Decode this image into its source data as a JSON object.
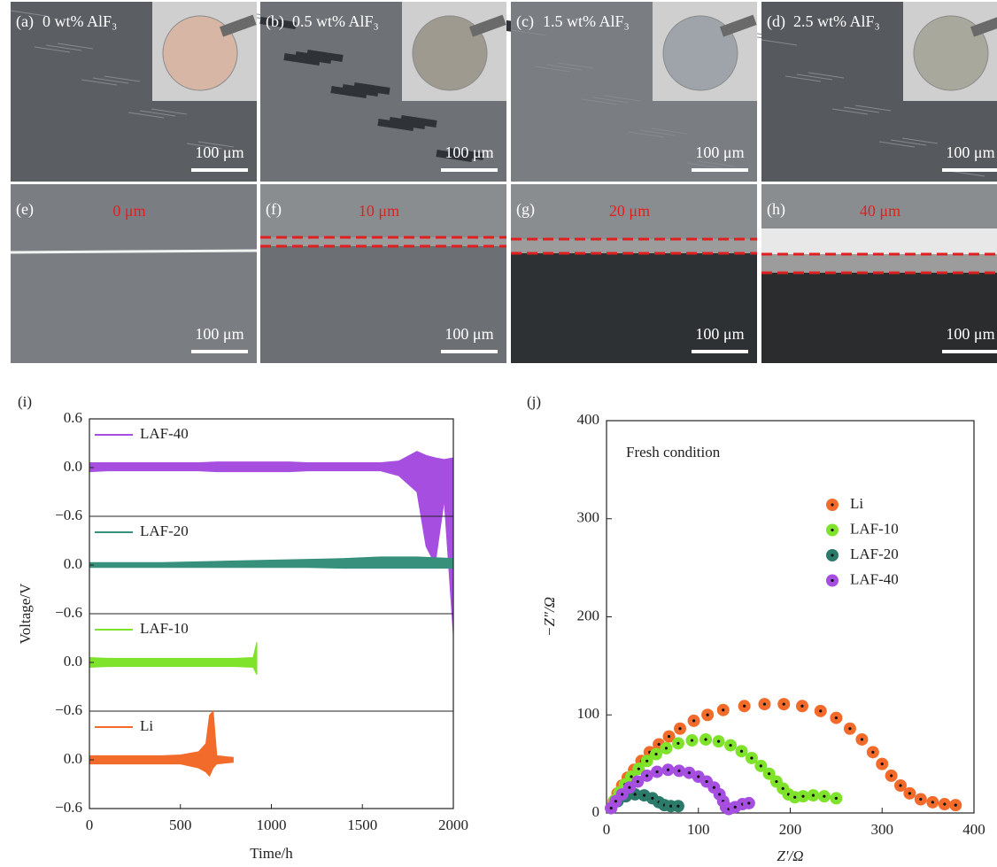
{
  "panels": [
    {
      "label": "(a)",
      "text": "0 wt% AlF₃",
      "scale": "100 μm"
    },
    {
      "label": "(b)",
      "text": "0.5 wt% AlF₃",
      "scale": "100 μm"
    },
    {
      "label": "(c)",
      "text": "1.5 wt% AlF₃",
      "scale": "100 μm"
    },
    {
      "label": "(d)",
      "text": "2.5 wt% AlF₃",
      "scale": "100 μm"
    },
    {
      "label": "(e)",
      "text": "0 μm",
      "scale": "100 μm"
    },
    {
      "label": "(f)",
      "text": "10 μm",
      "scale": "100 μm"
    },
    {
      "label": "(g)",
      "text": "20 μm",
      "scale": "100 μm"
    },
    {
      "label": "(h)",
      "text": "40 μm",
      "scale": "100 μm"
    }
  ],
  "chart_data": [
    {
      "type": "area",
      "label": "(i)",
      "xlabel": "Time/h",
      "ylabel": "Voltage/V",
      "xlim": [
        0,
        2000
      ],
      "xticks": [
        0,
        500,
        1000,
        1500,
        2000
      ],
      "series": [
        {
          "name": "LAF-40",
          "color": "#a64ee0",
          "ylim": [
            -0.6,
            0.6
          ],
          "yticks": [
            {
              "value": -0.6,
              "label": "−0.6"
            },
            {
              "value": 0,
              "label": "0.0"
            },
            0.6
          ],
          "x": [
            0,
            100,
            200,
            300,
            400,
            500,
            600,
            700,
            800,
            900,
            1000,
            1100,
            1200,
            1300,
            1400,
            1500,
            1600,
            1700,
            1800,
            1850,
            1900,
            1950,
            2000
          ],
          "upper": [
            0.06,
            0.06,
            0.06,
            0.06,
            0.06,
            0.06,
            0.06,
            0.07,
            0.07,
            0.07,
            0.07,
            0.07,
            0.06,
            0.06,
            0.06,
            0.06,
            0.06,
            0.08,
            0.2,
            0.15,
            0.12,
            0.1,
            0.12
          ],
          "lower": [
            -0.05,
            -0.04,
            -0.04,
            -0.04,
            -0.04,
            -0.04,
            -0.04,
            -0.05,
            -0.05,
            -0.05,
            -0.05,
            -0.05,
            -0.04,
            -0.04,
            -0.04,
            -0.04,
            -0.04,
            -0.1,
            -0.3,
            -0.97,
            -1.19,
            -0.4,
            -2.06
          ]
        },
        {
          "name": "LAF-20",
          "color": "#36907c",
          "ylim": [
            -0.6,
            0.6
          ],
          "yticks": [
            {
              "value": -0.6,
              "label": "−0.6"
            },
            {
              "value": 0,
              "label": "0.0"
            }
          ],
          "x": [
            0,
            200,
            400,
            600,
            800,
            1000,
            1200,
            1400,
            1600,
            1800,
            2000
          ],
          "upper": [
            0.03,
            0.03,
            0.03,
            0.04,
            0.05,
            0.06,
            0.07,
            0.08,
            0.1,
            0.1,
            0.08
          ],
          "lower": [
            -0.03,
            -0.03,
            -0.03,
            -0.03,
            -0.03,
            -0.03,
            -0.03,
            -0.04,
            -0.04,
            -0.04,
            -0.04
          ]
        },
        {
          "name": "LAF-10",
          "color": "#7fe22b",
          "ylim": [
            -0.6,
            0.6
          ],
          "yticks": [
            {
              "value": -0.6,
              "label": "−0.6"
            },
            {
              "value": 0,
              "label": "0.0"
            }
          ],
          "x": [
            0,
            100,
            200,
            300,
            400,
            500,
            600,
            700,
            800,
            900,
            920
          ],
          "upper": [
            0.06,
            0.05,
            0.05,
            0.05,
            0.05,
            0.05,
            0.05,
            0.05,
            0.05,
            0.06,
            0.25
          ],
          "lower": [
            -0.06,
            -0.05,
            -0.05,
            -0.05,
            -0.05,
            -0.05,
            -0.05,
            -0.05,
            -0.05,
            -0.06,
            -0.15
          ]
        },
        {
          "name": "Li",
          "color": "#f26b2a",
          "ylim": [
            -0.6,
            0.6
          ],
          "yticks": [
            {
              "value": -0.6,
              "label": "−0.6"
            },
            {
              "value": 0,
              "label": "0.0"
            }
          ],
          "x": [
            0,
            100,
            200,
            300,
            400,
            500,
            600,
            640,
            660,
            680,
            700,
            790
          ],
          "upper": [
            0.05,
            0.05,
            0.05,
            0.05,
            0.05,
            0.06,
            0.1,
            0.2,
            0.55,
            0.6,
            0.05,
            0.03
          ],
          "lower": [
            -0.05,
            -0.05,
            -0.05,
            -0.05,
            -0.05,
            -0.05,
            -0.1,
            -0.15,
            -0.2,
            -0.1,
            -0.05,
            -0.03
          ]
        }
      ]
    },
    {
      "type": "scatter",
      "label": "(j)",
      "annotation": "Fresh condition",
      "xlabel": "Z′/Ω",
      "ylabel": "−Z″/Ω",
      "xlim": [
        0,
        400
      ],
      "xticks": [
        0,
        100,
        200,
        300,
        400
      ],
      "ylim": [
        0,
        400
      ],
      "yticks": [
        0,
        100,
        200,
        300,
        400
      ],
      "series": [
        {
          "name": "Li",
          "color": "#f26b2a",
          "x": [
            5,
            8,
            12,
            17,
            23,
            30,
            38,
            47,
            57,
            68,
            80,
            95,
            110,
            127,
            150,
            172,
            193,
            213,
            233,
            250,
            265,
            278,
            290,
            300,
            310,
            320,
            330,
            342,
            355,
            368,
            380
          ],
          "values": [
            5,
            12,
            20,
            28,
            36,
            44,
            53,
            62,
            70,
            78,
            86,
            94,
            100,
            105,
            109,
            111,
            111,
            109,
            104,
            97,
            86,
            75,
            62,
            50,
            38,
            28,
            20,
            14,
            11,
            9,
            8
          ]
        },
        {
          "name": "LAF-10",
          "color": "#7fe22b",
          "x": [
            5,
            9,
            14,
            20,
            27,
            35,
            44,
            54,
            65,
            78,
            93,
            108,
            122,
            135,
            147,
            158,
            168,
            177,
            185,
            192,
            198,
            205,
            214,
            225,
            237,
            250
          ],
          "values": [
            5,
            13,
            21,
            29,
            37,
            45,
            53,
            60,
            66,
            71,
            74,
            75,
            73,
            69,
            63,
            56,
            48,
            40,
            32,
            25,
            19,
            16,
            17,
            18,
            17,
            15
          ]
        },
        {
          "name": "LAF-20",
          "color": "#2b7a6a",
          "x": [
            5,
            12,
            21,
            31,
            41,
            50,
            57,
            63,
            70,
            78
          ],
          "values": [
            5,
            12,
            17,
            19,
            18,
            15,
            11,
            8,
            7,
            7
          ]
        },
        {
          "name": "LAF-40",
          "color": "#a64ee0",
          "x": [
            5,
            10,
            17,
            25,
            34,
            44,
            55,
            67,
            79,
            90,
            100,
            109,
            117,
            123,
            127,
            130,
            133,
            140,
            148,
            155
          ],
          "values": [
            5,
            12,
            19,
            26,
            32,
            38,
            42,
            44,
            43,
            41,
            37,
            32,
            26,
            19,
            12,
            6,
            4,
            6,
            9,
            10
          ]
        }
      ]
    }
  ]
}
